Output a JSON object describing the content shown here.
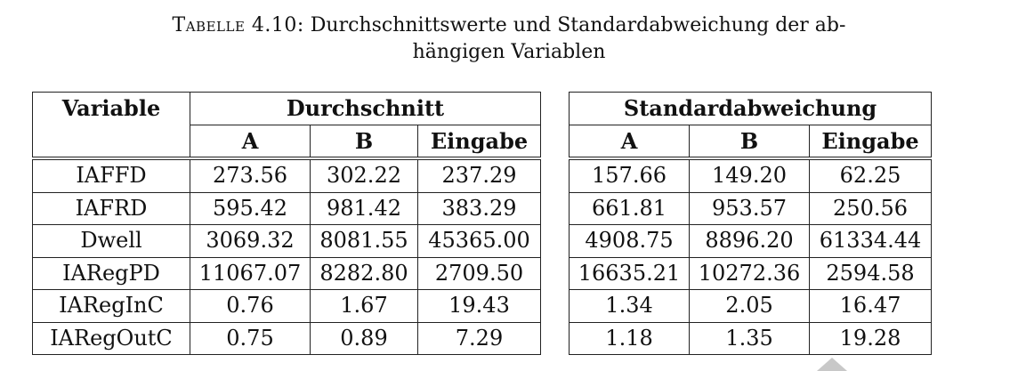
{
  "caption": {
    "label": "Tabelle 4.10:",
    "line1": "Durchschnittswerte und Standardabweichung der ab-",
    "line2": "hängigen Variablen"
  },
  "table": {
    "header": {
      "variable": "Variable",
      "mean_group": "Durchschnitt",
      "sd_group": "Standardabweichung",
      "sub": [
        "A",
        "B",
        "Eingabe"
      ]
    },
    "rows": [
      {
        "name": "IAFFD",
        "mean": [
          "273.56",
          "302.22",
          "237.29"
        ],
        "sd": [
          "157.66",
          "149.20",
          "62.25"
        ]
      },
      {
        "name": "IAFRD",
        "mean": [
          "595.42",
          "981.42",
          "383.29"
        ],
        "sd": [
          "661.81",
          "953.57",
          "250.56"
        ]
      },
      {
        "name": "Dwell",
        "mean": [
          "3069.32",
          "8081.55",
          "45365.00"
        ],
        "sd": [
          "4908.75",
          "8896.20",
          "61334.44"
        ]
      },
      {
        "name": "IARegPD",
        "mean": [
          "11067.07",
          "8282.80",
          "2709.50"
        ],
        "sd": [
          "16635.21",
          "10272.36",
          "2594.58"
        ]
      },
      {
        "name": "IARegInC",
        "mean": [
          "0.76",
          "1.67",
          "19.43"
        ],
        "sd": [
          "1.34",
          "2.05",
          "16.47"
        ]
      },
      {
        "name": "IARegOutC",
        "mean": [
          "0.75",
          "0.89",
          "7.29"
        ],
        "sd": [
          "1.18",
          "1.35",
          "19.28"
        ]
      }
    ]
  }
}
